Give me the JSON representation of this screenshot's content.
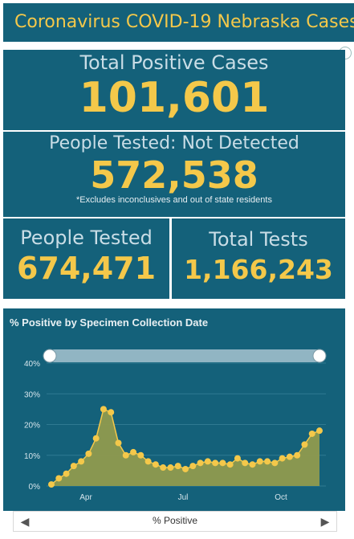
{
  "header": {
    "title": "Coronavirus COVID-19 Nebraska Cases"
  },
  "stats": {
    "total_positive": {
      "label": "Total Positive Cases",
      "value": "101,601"
    },
    "not_detected": {
      "label": "People Tested: Not Detected",
      "value": "572,538",
      "note": "*Excludes inconclusives and out of state residents"
    },
    "people_tested": {
      "label": "People Tested",
      "value": "674,471"
    },
    "total_tests": {
      "label": "Total Tests",
      "value": "1,166,243"
    }
  },
  "chart": {
    "title": "% Positive by Specimen Collection Date",
    "series_label": "% Positive"
  },
  "chart_data": {
    "type": "area",
    "title": "% Positive by Specimen Collection Date",
    "y_ticks": [
      "0%",
      "10%",
      "20%",
      "30%",
      "40%"
    ],
    "x_ticks": [
      "Apr",
      "Jul",
      "Oct"
    ],
    "ylim": [
      0,
      40
    ],
    "grid": true,
    "series": [
      {
        "values": [
          0.5,
          2.5,
          4,
          6.5,
          8,
          10.5,
          15.5,
          25,
          24,
          14,
          10,
          11,
          10,
          8,
          7,
          6,
          6,
          6.5,
          5.5,
          6.5,
          7.5,
          8,
          7.5,
          7.5,
          7,
          9,
          7.5,
          7,
          8,
          8,
          7.5,
          9,
          9.5,
          10,
          13.5,
          17,
          18
        ]
      }
    ],
    "color": "#f4c84a"
  }
}
